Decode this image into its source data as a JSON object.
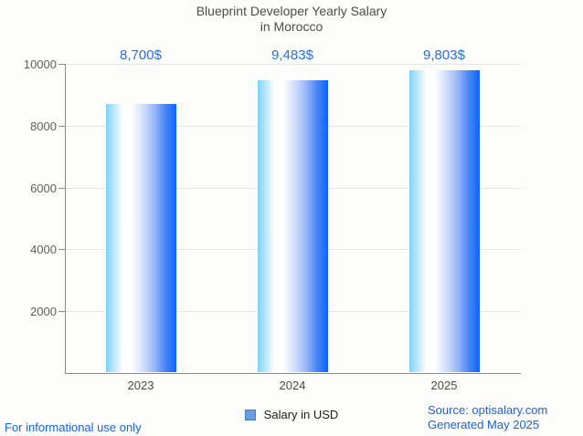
{
  "title": {
    "line1": "Blueprint Developer Yearly Salary",
    "line2": "in Morocco"
  },
  "chart_data": {
    "type": "bar",
    "title": "Blueprint Developer Yearly Salary in Morocco",
    "categories": [
      "2023",
      "2024",
      "2025"
    ],
    "series": [
      {
        "name": "Salary in USD",
        "values": [
          8700,
          9483,
          9803
        ]
      }
    ],
    "value_labels": [
      "8,700$",
      "9,483$",
      "9,803$"
    ],
    "xlabel": "",
    "ylabel": "",
    "ylim": [
      0,
      10000
    ],
    "yticks": [
      2000,
      4000,
      6000,
      8000,
      10000
    ],
    "grid": true,
    "legend_position": "bottom",
    "bar_gradient": [
      "#7fd2f8",
      "#ffffff",
      "#0d63fa"
    ],
    "annotation_color": "#2470e4"
  },
  "legend": {
    "label": "Salary in USD",
    "marker_color": "#689de2"
  },
  "footer": {
    "left": "For informational use only",
    "source": "Source: optisalary.com",
    "generated": "Generated May 2025"
  },
  "colors": {
    "background": "#fcfcfa",
    "title_text": "#4c4c4c",
    "axis_line": "#8a8a8a",
    "gridline": "#e7e7e4",
    "tick_text": "#5f5f5f",
    "link_blue": "#1b63dd"
  }
}
